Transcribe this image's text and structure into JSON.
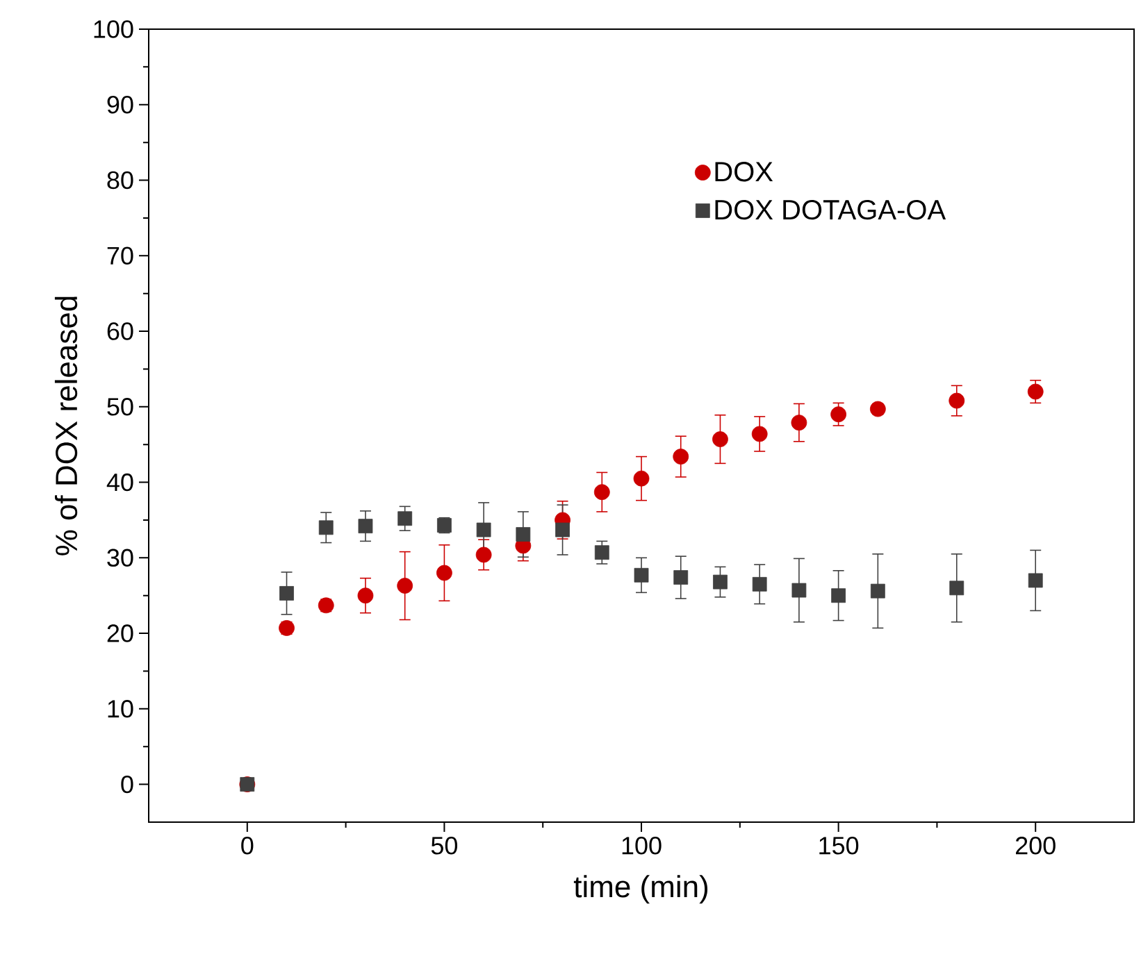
{
  "chart_data": {
    "type": "scatter",
    "xlabel": "time (min)",
    "ylabel": "% of DOX released",
    "xlim": [
      -25,
      225
    ],
    "xticks": [
      0,
      50,
      100,
      150,
      200
    ],
    "ylim": [
      -5,
      100
    ],
    "yticks": [
      0,
      10,
      20,
      30,
      40,
      50,
      60,
      70,
      80,
      90,
      100
    ],
    "grid": false,
    "legend": "top right",
    "series": [
      {
        "name": "DOX",
        "color": "#cc0000",
        "marker": "circle",
        "x": [
          0,
          10,
          20,
          30,
          40,
          50,
          60,
          70,
          80,
          90,
          100,
          110,
          120,
          130,
          140,
          150,
          160,
          180,
          200
        ],
        "values": [
          0,
          20.7,
          23.7,
          25,
          26.3,
          28,
          30.4,
          31.6,
          35,
          38.7,
          40.5,
          43.4,
          45.7,
          46.4,
          47.9,
          49,
          49.7,
          50.8,
          52
        ],
        "errors": [
          null,
          0.8,
          0.8,
          2.3,
          4.5,
          3.7,
          2,
          2,
          2.5,
          2.6,
          2.9,
          2.7,
          3.2,
          2.3,
          2.5,
          1.5,
          0.7,
          2,
          1.5
        ]
      },
      {
        "name": "DOX DOTAGA-OA",
        "color": "#404040",
        "marker": "square",
        "x": [
          0,
          10,
          20,
          30,
          40,
          50,
          60,
          70,
          80,
          90,
          100,
          110,
          120,
          130,
          140,
          150,
          160,
          180,
          200
        ],
        "values": [
          0,
          25.3,
          34,
          34.2,
          35.2,
          34.3,
          33.7,
          33.1,
          33.7,
          30.7,
          27.7,
          27.4,
          26.8,
          26.5,
          25.7,
          25,
          25.6,
          26,
          27
        ],
        "errors": [
          null,
          2.8,
          2,
          2,
          1.6,
          1,
          3.6,
          3,
          3.3,
          1.5,
          2.3,
          2.8,
          2,
          2.6,
          4.2,
          3.3,
          4.9,
          4.5,
          4
        ]
      }
    ]
  }
}
